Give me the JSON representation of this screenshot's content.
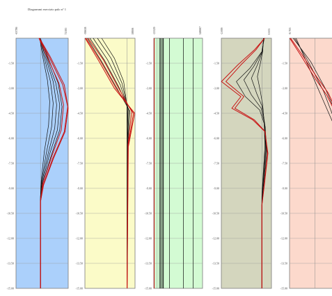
{
  "title": "Diagrammi esercizio palo n° 1",
  "chart_data": [
    {
      "type": "line",
      "panel_bg": "#abd0fb",
      "top_labels": [
        "-63786",
        "72183"
      ],
      "x_range": [
        -63786,
        72183
      ],
      "ylim": [
        0,
        -15
      ],
      "yticks": [
        "-1.50",
        "-3.00",
        "-4.50",
        "-6.00",
        "-7.50",
        "-9.00",
        "-10.50",
        "-12.00",
        "-13.50",
        "-15.00"
      ],
      "black_curves": [
        {
          "x": [
            -2000,
            5000,
            18000,
            24000,
            21000,
            10000,
            2000,
            0,
            0
          ],
          "y": [
            0,
            -1.0,
            -2.5,
            -3.8,
            -5.2,
            -6.8,
            -8.5,
            -9.5,
            -15
          ]
        },
        {
          "x": [
            -1500,
            8000,
            26000,
            33000,
            29000,
            15000,
            3000,
            0,
            0
          ],
          "y": [
            0,
            -1.0,
            -2.6,
            -3.9,
            -5.3,
            -6.9,
            -8.6,
            -9.5,
            -15
          ]
        },
        {
          "x": [
            -1000,
            11000,
            33000,
            42000,
            37000,
            19000,
            4000,
            0,
            0
          ],
          "y": [
            0,
            -1.0,
            -2.6,
            -4.0,
            -5.4,
            -7.0,
            -8.6,
            -9.6,
            -15
          ]
        },
        {
          "x": [
            -800,
            14000,
            40000,
            50000,
            44000,
            23000,
            5000,
            0,
            0
          ],
          "y": [
            0,
            -1.0,
            -2.7,
            -4.0,
            -5.5,
            -7.0,
            -8.7,
            -9.7,
            -15
          ]
        },
        {
          "x": [
            -500,
            17000,
            46000,
            56000,
            50000,
            27000,
            6000,
            0,
            0
          ],
          "y": [
            0,
            -1.0,
            -2.7,
            -4.1,
            -5.5,
            -7.1,
            -8.7,
            -9.7,
            -15
          ]
        }
      ],
      "red_curves": [
        {
          "x": [
            -3000,
            22000,
            58000,
            71000,
            62000,
            32000,
            7000,
            0,
            0
          ],
          "y": [
            0,
            -1.1,
            -2.8,
            -4.1,
            -5.6,
            -7.2,
            -8.8,
            -9.8,
            -15
          ]
        },
        {
          "x": [
            -2500,
            25000,
            62000,
            72000,
            64000,
            34000,
            8000,
            0,
            0
          ],
          "y": [
            0,
            -1.1,
            -2.8,
            -4.2,
            -5.6,
            -7.2,
            -8.8,
            -9.8,
            -15
          ]
        },
        {
          "x": [
            -4000,
            15000,
            48000,
            60000,
            54000,
            29000,
            6000,
            0,
            0
          ],
          "y": [
            0,
            -1.0,
            -2.7,
            -4.0,
            -5.5,
            -7.1,
            -8.7,
            -9.7,
            -15
          ]
        }
      ]
    },
    {
      "type": "line",
      "panel_bg": "#fbfbc8",
      "top_labels": [
        "-99658",
        "18806"
      ],
      "x_range": [
        -99658,
        18806
      ],
      "ylim": [
        0,
        -15
      ],
      "yticks": [
        "-1.50",
        "-3.00",
        "-4.50",
        "-6.00",
        "-7.50",
        "-9.00",
        "-10.50",
        "-12.00",
        "-13.50",
        "-15.00"
      ],
      "black_curves": [
        {
          "x": [
            -60000,
            -30000,
            -8000,
            -500,
            0,
            0
          ],
          "y": [
            0,
            -1.2,
            -2.6,
            -4.0,
            -6.0,
            -15
          ]
        },
        {
          "x": [
            -70000,
            -38000,
            -12000,
            800,
            200,
            0
          ],
          "y": [
            0,
            -1.2,
            -2.7,
            -4.1,
            -6.1,
            -15
          ]
        },
        {
          "x": [
            -80000,
            -46000,
            -16000,
            2500,
            600,
            0
          ],
          "y": [
            0,
            -1.3,
            -2.8,
            -4.2,
            -6.2,
            -15
          ]
        },
        {
          "x": [
            -88000,
            -54000,
            -20000,
            4500,
            1000,
            0
          ],
          "y": [
            0,
            -1.3,
            -2.9,
            -4.3,
            -6.3,
            -15
          ]
        },
        {
          "x": [
            -94000,
            -60000,
            -24000,
            7000,
            1500,
            0
          ],
          "y": [
            0,
            -1.4,
            -3.0,
            -4.4,
            -6.4,
            -15
          ]
        }
      ],
      "red_curves": [
        {
          "x": [
            -99000,
            -66000,
            -30000,
            18000,
            3000,
            0
          ],
          "y": [
            0,
            -1.4,
            -3.0,
            -4.5,
            -6.5,
            -15
          ]
        },
        {
          "x": [
            -97000,
            -62000,
            -26000,
            15000,
            2500,
            0
          ],
          "y": [
            0,
            -1.4,
            -3.0,
            -4.5,
            -6.5,
            -15
          ]
        },
        {
          "x": [
            -92000,
            -56000,
            -22000,
            11000,
            2000,
            0
          ],
          "y": [
            0,
            -1.3,
            -2.9,
            -4.4,
            -6.4,
            -15
          ]
        }
      ]
    },
    {
      "type": "line",
      "panel_bg": "#d3fbd3",
      "top_labels": [
        "-25329",
        "346667"
      ],
      "x_range": [
        -25329,
        346667
      ],
      "ylim": [
        0,
        -15
      ],
      "yticks": [
        "-1.50",
        "-3.00",
        "-4.50",
        "-6.00",
        "-7.50",
        "-9.00",
        "-10.50",
        "-12.00",
        "-13.50",
        "-15.00"
      ],
      "black_curves": [
        {
          "x": [
            18000,
            18000
          ],
          "y": [
            0,
            -15
          ]
        },
        {
          "x": [
            26000,
            26000
          ],
          "y": [
            0,
            -15
          ]
        },
        {
          "x": [
            34000,
            34000
          ],
          "y": [
            0,
            -15
          ]
        },
        {
          "x": [
            44000,
            44000
          ],
          "y": [
            0,
            -15
          ]
        },
        {
          "x": [
            48000,
            48000
          ],
          "y": [
            0,
            -15
          ]
        },
        {
          "x": [
            95000,
            95000
          ],
          "y": [
            0,
            -15
          ]
        },
        {
          "x": [
            200000,
            200000
          ],
          "y": [
            0,
            -15
          ]
        },
        {
          "x": [
            275000,
            275000
          ],
          "y": [
            0,
            -15
          ]
        }
      ],
      "red_curves": [
        {
          "x": [
            -22000,
            -22000
          ],
          "y": [
            0,
            -15
          ]
        }
      ]
    },
    {
      "type": "line",
      "panel_bg": "#d4d6be",
      "top_labels": [
        "-2.699",
        "0.635"
      ],
      "x_range": [
        -2.699,
        0.635
      ],
      "ylim": [
        0,
        -15
      ],
      "yticks": [
        "-1.50",
        "-3.00",
        "-4.50",
        "-6.00",
        "-7.50",
        "-9.00",
        "-10.50",
        "-12.00",
        "-13.50",
        "-15.00"
      ],
      "black_curves": [
        {
          "x": [
            0.1,
            0.05,
            -0.1,
            -0.3,
            -0.1,
            0.05,
            0.15,
            0.2,
            0.06,
            0,
            0
          ],
          "y": [
            0,
            -0.8,
            -1.5,
            -2.3,
            -3.2,
            -4.0,
            -5.0,
            -6.5,
            -8.5,
            -9.5,
            -15
          ]
        },
        {
          "x": [
            0.12,
            0.04,
            -0.3,
            -0.7,
            -0.35,
            0.02,
            0.18,
            0.24,
            0.08,
            0,
            0
          ],
          "y": [
            0,
            -0.8,
            -1.6,
            -2.4,
            -3.3,
            -4.1,
            -5.1,
            -6.6,
            -8.6,
            -9.6,
            -15
          ]
        },
        {
          "x": [
            0.14,
            0.02,
            -0.55,
            -1.2,
            -0.7,
            -0.05,
            0.2,
            0.28,
            0.1,
            0,
            0
          ],
          "y": [
            0,
            -0.8,
            -1.7,
            -2.5,
            -3.4,
            -4.2,
            -5.2,
            -6.7,
            -8.7,
            -9.7,
            -15
          ]
        },
        {
          "x": [
            0.16,
            0.0,
            -0.8,
            -1.7,
            -1.1,
            -0.15,
            0.22,
            0.32,
            0.12,
            0,
            0
          ],
          "y": [
            0,
            -0.8,
            -1.8,
            -2.6,
            -3.5,
            -4.3,
            -5.3,
            -6.8,
            -8.8,
            -9.8,
            -15
          ]
        }
      ],
      "red_curves": [
        {
          "x": [
            0.18,
            -0.5,
            -1.6,
            -2.69,
            -1.4,
            -2.0,
            -0.6,
            0.2,
            0.4,
            0.15,
            0,
            0
          ],
          "y": [
            0,
            -0.7,
            -1.6,
            -2.6,
            -3.5,
            -4.2,
            -4.9,
            -5.6,
            -6.9,
            -8.9,
            -10.0,
            -15
          ]
        },
        {
          "x": [
            0.17,
            -0.4,
            -1.4,
            -2.4,
            -1.2,
            -1.8,
            -0.5,
            0.22,
            0.37,
            0.14,
            0,
            0
          ],
          "y": [
            0,
            -0.7,
            -1.6,
            -2.6,
            -3.5,
            -4.2,
            -4.9,
            -5.6,
            -6.9,
            -8.9,
            -10.0,
            -15
          ]
        }
      ]
    },
    {
      "type": "line",
      "panel_bg": "#fcd9cc",
      "top_labels": [
        "-8.763"
      ],
      "x_range": [
        -8.763,
        8.0
      ],
      "ylim": [
        0,
        -15
      ],
      "yticks": [
        "-1.50",
        "-3.00",
        "-4.50",
        "-6.00",
        "-7.50",
        "-9.00",
        "-10.50",
        "-12.00",
        "-13.50",
        "-15.00"
      ],
      "black_curves": [
        {
          "x": [
            -7.0,
            -2.0,
            3.0,
            6.5
          ],
          "y": [
            0,
            -1.5,
            -3.2,
            -4.8
          ]
        },
        {
          "x": [
            -7.5,
            -1.5,
            3.5,
            7.5
          ],
          "y": [
            0,
            -1.4,
            -3.0,
            -4.6
          ]
        },
        {
          "x": [
            -6.5,
            -2.5,
            2.0,
            6.0
          ],
          "y": [
            0,
            -1.6,
            -3.4,
            -5.0
          ]
        }
      ],
      "red_curves": [
        {
          "x": [
            -8.7,
            -5.0,
            0.0,
            4.0,
            8.0
          ],
          "y": [
            0,
            -1.0,
            -2.4,
            -3.4,
            -4.8
          ]
        },
        {
          "x": [
            -8.4,
            -4.4,
            0.5,
            4.6,
            8.0
          ],
          "y": [
            0,
            -1.0,
            -2.3,
            -3.3,
            -4.6
          ]
        }
      ]
    }
  ]
}
